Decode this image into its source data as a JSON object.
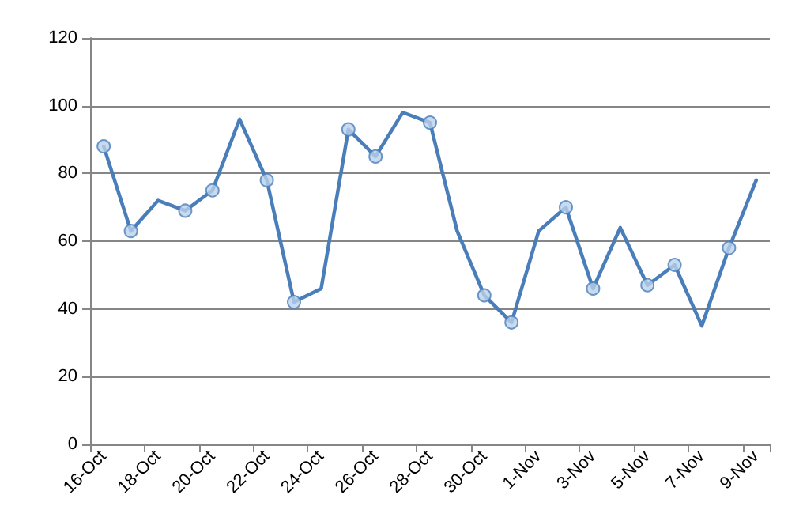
{
  "chart_data": {
    "type": "line",
    "categories": [
      "16-Oct",
      null,
      "18-Oct",
      null,
      "20-Oct",
      null,
      "22-Oct",
      null,
      "24-Oct",
      null,
      "26-Oct",
      null,
      "28-Oct",
      null,
      "30-Oct",
      null,
      "1-Nov",
      null,
      "3-Nov",
      null,
      "5-Nov",
      null,
      "7-Nov",
      null,
      "9-Nov"
    ],
    "series": [
      {
        "color": "#4a7ebb",
        "marker": "none",
        "values": [
          88,
          63,
          72,
          69,
          75,
          96,
          78,
          42,
          46,
          93,
          85,
          98,
          95,
          63,
          44,
          36,
          63,
          70,
          46,
          64,
          47,
          53,
          35,
          58,
          78
        ]
      },
      {
        "type": "scatter",
        "color": "#4a7ebb",
        "marker": "circle",
        "values": [
          88,
          63,
          null,
          69,
          75,
          null,
          78,
          42,
          null,
          93,
          85,
          null,
          95,
          null,
          44,
          36,
          null,
          70,
          46,
          null,
          47,
          53,
          null,
          58,
          null
        ]
      }
    ],
    "ylim": [
      0,
      120
    ],
    "yticks": [
      0,
      20,
      40,
      60,
      80,
      100,
      120
    ],
    "grid": "y"
  }
}
